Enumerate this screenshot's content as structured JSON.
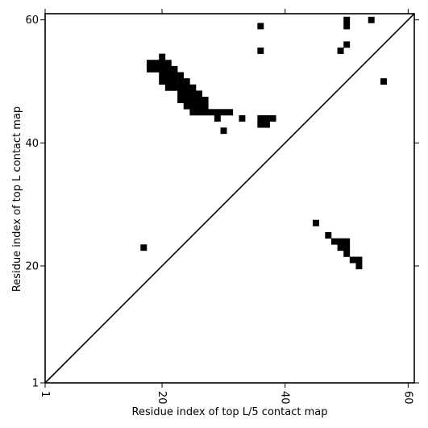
{
  "chart_data": {
    "type": "heatmap",
    "title": "",
    "xlabel": "Residue index of top L/5 contact map",
    "ylabel": "Residue index of top L contact map",
    "xlim": [
      1,
      61
    ],
    "ylim": [
      1,
      61
    ],
    "x_ticks": [
      1,
      20,
      40,
      60
    ],
    "y_ticks": [
      1,
      20,
      40,
      60
    ],
    "grid": false,
    "diagonal": {
      "from": [
        1,
        1
      ],
      "to": [
        61,
        61
      ],
      "color": "#000000"
    },
    "cell_color": "#000000",
    "upper_contacts": [
      [
        36,
        59
      ],
      [
        36,
        55
      ],
      [
        50,
        60
      ],
      [
        50,
        59
      ],
      [
        54,
        60
      ],
      [
        50,
        56
      ],
      [
        49,
        55
      ],
      [
        56,
        50
      ],
      [
        18,
        53
      ],
      [
        19,
        53
      ],
      [
        20,
        53
      ],
      [
        21,
        53
      ],
      [
        18,
        52
      ],
      [
        19,
        52
      ],
      [
        20,
        52
      ],
      [
        21,
        52
      ],
      [
        22,
        52
      ],
      [
        20,
        54
      ],
      [
        20,
        51
      ],
      [
        21,
        51
      ],
      [
        22,
        51
      ],
      [
        23,
        51
      ],
      [
        20,
        50
      ],
      [
        21,
        50
      ],
      [
        22,
        50
      ],
      [
        23,
        50
      ],
      [
        24,
        50
      ],
      [
        21,
        49
      ],
      [
        22,
        49
      ],
      [
        23,
        49
      ],
      [
        24,
        49
      ],
      [
        25,
        49
      ],
      [
        23,
        48
      ],
      [
        24,
        48
      ],
      [
        25,
        48
      ],
      [
        26,
        48
      ],
      [
        23,
        47
      ],
      [
        24,
        47
      ],
      [
        25,
        47
      ],
      [
        26,
        47
      ],
      [
        27,
        47
      ],
      [
        24,
        46
      ],
      [
        25,
        46
      ],
      [
        26,
        46
      ],
      [
        27,
        46
      ],
      [
        25,
        45
      ],
      [
        26,
        45
      ],
      [
        27,
        45
      ],
      [
        28,
        45
      ],
      [
        29,
        45
      ],
      [
        30,
        45
      ],
      [
        31,
        45
      ],
      [
        29,
        44
      ],
      [
        33,
        44
      ],
      [
        36,
        44
      ],
      [
        37,
        44
      ],
      [
        38,
        44
      ],
      [
        36,
        43
      ],
      [
        37,
        43
      ],
      [
        30,
        42
      ]
    ],
    "lower_contacts": [
      [
        17,
        23
      ],
      [
        45,
        27
      ],
      [
        47,
        25
      ],
      [
        48,
        24
      ],
      [
        49,
        24
      ],
      [
        50,
        24
      ],
      [
        49,
        23
      ],
      [
        50,
        23
      ],
      [
        50,
        22
      ],
      [
        51,
        21
      ],
      [
        52,
        21
      ],
      [
        52,
        20
      ]
    ]
  }
}
